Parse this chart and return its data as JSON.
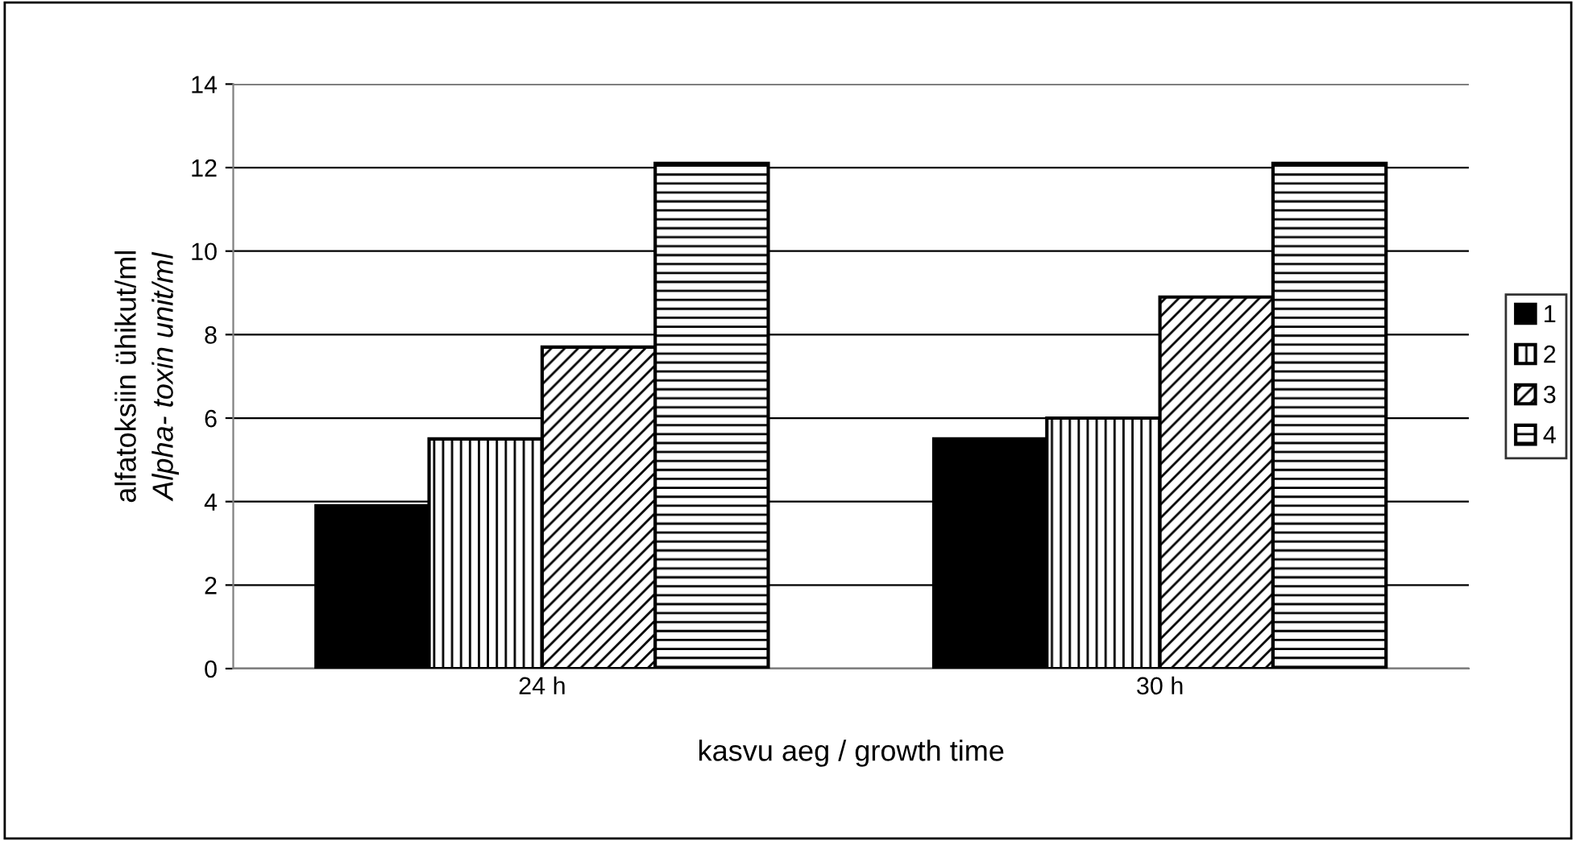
{
  "chart_data": {
    "type": "bar",
    "xlabel": "kasvu aeg / growth time",
    "ylabel": "alfatoksiin ühikut/ml\nAlpha- toxin unit/ml",
    "categories": [
      "24 h",
      "30 h"
    ],
    "series": [
      {
        "name": "1",
        "color": "#000000",
        "values": [
          3.9,
          5.5
        ]
      },
      {
        "name": "2",
        "color": "#000000",
        "values": [
          5.5,
          6.0
        ]
      },
      {
        "name": "3",
        "color": "#000000",
        "values": [
          7.7,
          8.9
        ]
      },
      {
        "name": "4",
        "color": "#000000",
        "values": [
          12.1,
          12.1
        ]
      }
    ],
    "ylim": [
      0,
      14
    ],
    "yticks": [
      0,
      2,
      4,
      6,
      8,
      10,
      12,
      14
    ],
    "grid": "y",
    "legend": "right"
  }
}
